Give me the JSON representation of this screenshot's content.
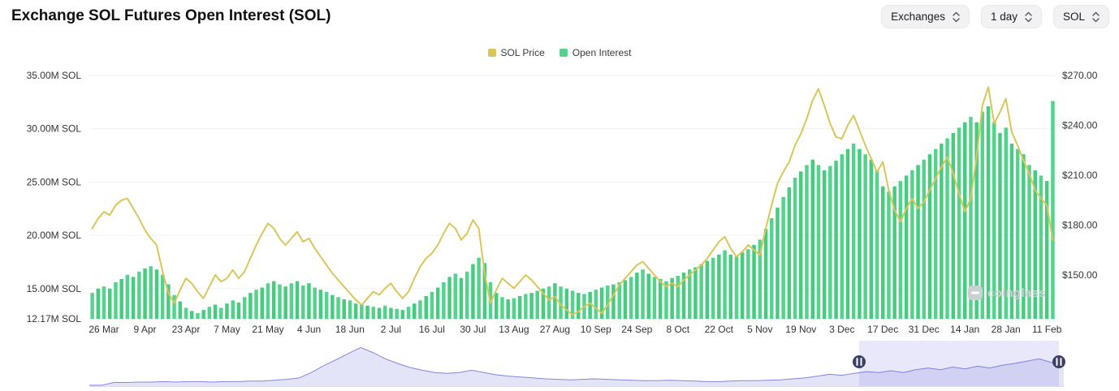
{
  "header": {
    "title": "Exchange SOL Futures Open Interest (SOL)",
    "controls": [
      {
        "label": "Exchanges",
        "icon": "updown-chevron-icon"
      },
      {
        "label": "1 day",
        "icon": "updown-chevron-icon"
      },
      {
        "label": "SOL",
        "icon": "updown-chevron-icon"
      }
    ]
  },
  "legend": [
    {
      "label": "SOL Price",
      "color": "#d9c65a"
    },
    {
      "label": "Open Interest",
      "color": "#53d38b"
    }
  ],
  "watermark": "coinglass",
  "chart_data": {
    "type": "mixed",
    "title": "Exchange SOL Futures Open Interest (SOL)",
    "grid": "horizontal",
    "legend_position": "top-center",
    "x_tick_labels": [
      "26 Mar",
      "9 Apr",
      "23 Apr",
      "7 May",
      "21 May",
      "4 Jun",
      "18 Jun",
      "2 Jul",
      "16 Jul",
      "30 Jul",
      "13 Aug",
      "27 Aug",
      "10 Sep",
      "24 Sep",
      "8 Oct",
      "22 Oct",
      "5 Nov",
      "19 Nov",
      "3 Dec",
      "17 Dec",
      "31 Dec",
      "14 Jan",
      "28 Jan",
      "11 Feb"
    ],
    "x_tick_indices": [
      2,
      9,
      16,
      23,
      30,
      37,
      44,
      51,
      58,
      65,
      72,
      79,
      86,
      93,
      100,
      107,
      114,
      121,
      128,
      135,
      142,
      149,
      156,
      163
    ],
    "y_left": {
      "unit": "M SOL",
      "tick_labels": [
        "35.00M SOL",
        "30.00M SOL",
        "25.00M SOL",
        "20.00M SOL",
        "15.00M SOL",
        "12.17M SOL"
      ],
      "tick_values": [
        35,
        30,
        25,
        20,
        15,
        12.17
      ],
      "min": 12.17,
      "max": 35
    },
    "y_right": {
      "unit": "USD",
      "tick_labels": [
        "$270.00",
        "$240.00",
        "$210.00",
        "$180.00",
        "$150.00"
      ],
      "tick_values": [
        270,
        240,
        210,
        180,
        150
      ],
      "min": 150,
      "max": 270
    },
    "series": [
      {
        "name": "Open Interest",
        "type": "bar",
        "axis": "left",
        "unit": "M SOL",
        "color": "#53d38b",
        "color_alt": "#46cc7e",
        "values": [
          14.6,
          15.0,
          15.2,
          15.0,
          15.6,
          15.9,
          16.3,
          16.1,
          16.6,
          16.9,
          17.1,
          16.8,
          16.3,
          15.4,
          14.4,
          13.8,
          13.2,
          12.9,
          12.7,
          13.0,
          13.3,
          13.5,
          13.2,
          13.6,
          13.9,
          13.7,
          14.2,
          14.6,
          14.9,
          15.1,
          15.5,
          15.7,
          15.4,
          15.2,
          15.5,
          15.7,
          15.3,
          15.5,
          15.1,
          14.9,
          14.7,
          14.4,
          14.2,
          14.0,
          13.9,
          13.6,
          13.5,
          13.4,
          13.3,
          13.2,
          13.4,
          13.2,
          13.1,
          13.0,
          13.3,
          13.6,
          13.9,
          14.3,
          14.7,
          15.1,
          15.6,
          16.1,
          16.4,
          16.0,
          16.6,
          17.3,
          17.9,
          17.4,
          15.6,
          14.6,
          14.2,
          14.0,
          14.1,
          14.3,
          14.5,
          14.6,
          14.8,
          15.0,
          15.2,
          15.5,
          15.2,
          15.0,
          14.8,
          14.6,
          14.5,
          14.7,
          14.9,
          15.1,
          15.3,
          15.4,
          15.6,
          15.8,
          16.1,
          16.5,
          16.8,
          16.4,
          16.1,
          15.9,
          15.7,
          16.0,
          16.2,
          16.5,
          16.8,
          17.0,
          17.3,
          17.6,
          17.9,
          18.2,
          18.6,
          18.2,
          18.0,
          18.4,
          18.7,
          19.1,
          19.6,
          20.6,
          21.6,
          22.6,
          23.6,
          24.5,
          25.4,
          26.0,
          26.6,
          27.1,
          26.6,
          26.1,
          26.5,
          27.0,
          27.6,
          28.1,
          28.6,
          28.1,
          27.6,
          27.1,
          26.1,
          24.6,
          24.1,
          24.6,
          25.1,
          25.6,
          26.1,
          26.6,
          27.1,
          27.6,
          28.1,
          28.6,
          29.1,
          29.6,
          30.1,
          30.6,
          31.1,
          30.6,
          31.6,
          32.1,
          30.6,
          29.6,
          30.1,
          28.6,
          28.1,
          27.6,
          26.6,
          26.1,
          25.6,
          25.1,
          32.6
        ]
      },
      {
        "name": "SOL Price",
        "type": "line",
        "axis": "right",
        "unit": "USD",
        "color": "#d9c65a",
        "values": [
          178,
          184,
          188,
          186,
          192,
          195,
          196,
          190,
          184,
          177,
          172,
          168,
          152,
          139,
          133,
          141,
          148,
          145,
          140,
          136,
          143,
          150,
          146,
          148,
          153,
          148,
          152,
          160,
          168,
          175,
          181,
          178,
          172,
          168,
          172,
          176,
          170,
          172,
          166,
          161,
          156,
          151,
          147,
          143,
          139,
          135,
          132,
          136,
          140,
          138,
          142,
          145,
          140,
          136,
          140,
          148,
          155,
          160,
          163,
          168,
          175,
          181,
          178,
          171,
          175,
          183,
          178,
          151,
          133,
          141,
          148,
          145,
          142,
          146,
          150,
          147,
          143,
          139,
          135,
          137,
          132,
          129,
          126,
          128,
          131,
          133,
          130,
          127,
          132,
          138,
          144,
          148,
          152,
          156,
          158,
          154,
          150,
          146,
          143,
          145,
          143,
          147,
          150,
          153,
          156,
          160,
          165,
          170,
          173,
          166,
          161,
          164,
          168,
          165,
          162,
          178,
          192,
          205,
          212,
          218,
          228,
          235,
          244,
          255,
          262,
          252,
          241,
          233,
          232,
          240,
          246,
          237,
          228,
          220,
          212,
          218,
          201,
          189,
          182,
          190,
          196,
          190,
          194,
          201,
          208,
          215,
          221,
          211,
          199,
          188,
          196,
          221,
          252,
          263,
          241,
          248,
          256,
          236,
          228,
          219,
          211,
          201,
          196,
          192,
          171
        ]
      }
    ],
    "navigator": {
      "values": [
        2,
        2,
        8,
        8,
        9,
        9,
        10,
        9,
        10,
        10,
        9,
        10,
        10,
        11,
        11,
        13,
        15,
        18,
        30,
        45,
        58,
        72,
        85,
        74,
        60,
        50,
        41,
        35,
        30,
        28,
        30,
        35,
        30,
        25,
        22,
        20,
        18,
        16,
        15,
        14,
        15,
        16,
        15,
        14,
        13,
        12,
        12,
        13,
        12,
        11,
        10,
        10,
        11,
        12,
        12,
        13,
        14,
        16,
        18,
        22,
        26,
        24,
        28,
        32,
        30,
        34,
        30,
        36,
        40,
        36,
        42,
        38,
        44,
        40,
        46,
        50,
        55,
        60,
        52,
        45
      ],
      "selection_start_frac": 0.79,
      "selection_end_frac": 0.995,
      "line_color": "#8585e0",
      "fill_color": "#e4e4f8",
      "selection_color": "rgba(115,115,225,0.16)",
      "handle_color": "#3c4066"
    }
  }
}
